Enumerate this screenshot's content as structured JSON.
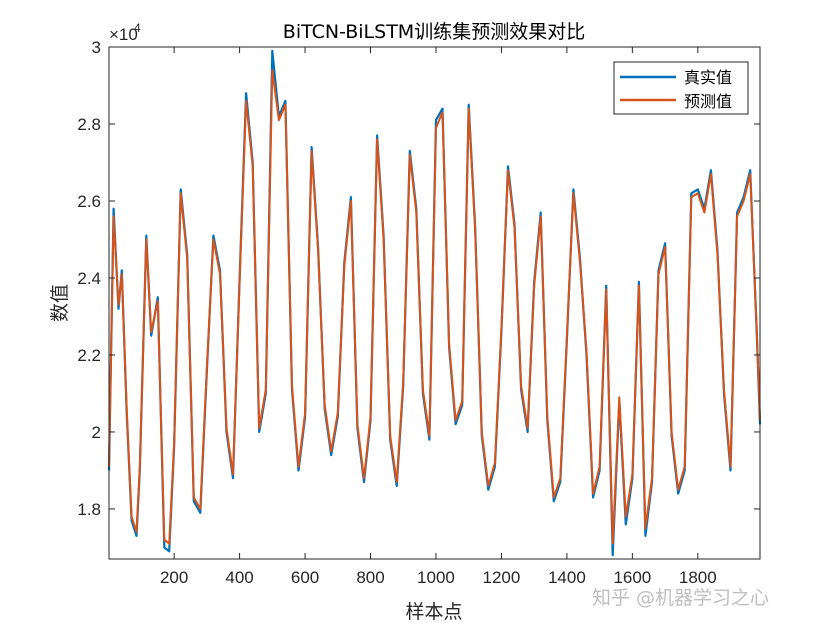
{
  "chart_data": {
    "type": "line",
    "title": "BiTCN-BiLSTM训练集预测效果对比",
    "xlabel": "样本点",
    "ylabel": "数值",
    "xlim": [
      1,
      1990
    ],
    "ylim": [
      16700,
      30000
    ],
    "y_exponent_label": "×10",
    "y_exponent_power": "4",
    "x_ticks": [
      200,
      400,
      600,
      800,
      1000,
      1200,
      1400,
      1600,
      1800
    ],
    "x_tick_labels": [
      "200",
      "400",
      "600",
      "800",
      "1000",
      "1200",
      "1400",
      "1600",
      "1800"
    ],
    "y_ticks": [
      18000,
      20000,
      22000,
      24000,
      26000,
      28000,
      30000
    ],
    "y_tick_labels": [
      "1.8",
      "2",
      "2.2",
      "2.4",
      "2.6",
      "2.8",
      "3"
    ],
    "grid": false,
    "legend_position": "top-right",
    "series": [
      {
        "name": "真实值",
        "color": "#0072BD"
      },
      {
        "name": "预测值",
        "color": "#D95319"
      }
    ],
    "x": [
      1,
      15,
      30,
      40,
      55,
      70,
      85,
      95,
      115,
      130,
      150,
      170,
      185,
      200,
      220,
      240,
      260,
      280,
      300,
      320,
      340,
      360,
      380,
      400,
      420,
      440,
      460,
      480,
      500,
      520,
      540,
      560,
      580,
      600,
      620,
      640,
      660,
      680,
      700,
      720,
      740,
      760,
      780,
      800,
      820,
      840,
      860,
      880,
      900,
      920,
      940,
      960,
      980,
      1000,
      1020,
      1040,
      1060,
      1080,
      1100,
      1120,
      1140,
      1160,
      1180,
      1200,
      1220,
      1240,
      1260,
      1280,
      1300,
      1320,
      1340,
      1360,
      1380,
      1400,
      1420,
      1440,
      1460,
      1480,
      1500,
      1520,
      1540,
      1560,
      1580,
      1600,
      1620,
      1640,
      1660,
      1680,
      1700,
      1720,
      1740,
      1760,
      1780,
      1800,
      1820,
      1840,
      1860,
      1880,
      1900,
      1920,
      1940,
      1960,
      1980,
      1990
    ],
    "true_values": [
      19000,
      25800,
      23200,
      24200,
      20500,
      17700,
      17300,
      19000,
      25100,
      22500,
      23500,
      17000,
      16900,
      19600,
      26300,
      24600,
      18200,
      17900,
      21600,
      25100,
      24200,
      20000,
      18800,
      24000,
      28800,
      27000,
      20000,
      21000,
      29900,
      28200,
      28600,
      21100,
      19000,
      20400,
      27400,
      24800,
      20600,
      19400,
      20400,
      24400,
      26100,
      20100,
      18700,
      20300,
      27700,
      25100,
      19800,
      18600,
      21200,
      27300,
      25800,
      21000,
      19800,
      28100,
      28400,
      22200,
      20200,
      20700,
      28500,
      25300,
      19900,
      18500,
      19100,
      22600,
      26900,
      25400,
      21100,
      20000,
      23900,
      25700,
      20300,
      18200,
      18700,
      22400,
      26300,
      24500,
      22000,
      18300,
      19000,
      23800,
      16800,
      20800,
      17600,
      18800,
      23900,
      17300,
      18700,
      24200,
      24900,
      19900,
      18400,
      19000,
      26200,
      26300,
      25800,
      26800,
      24700,
      21000,
      19000,
      25700,
      26100,
      26800,
      22600,
      20200
    ],
    "pred_values": [
      19100,
      25600,
      23300,
      24100,
      20600,
      17800,
      17400,
      19100,
      25000,
      22600,
      23400,
      17200,
      17100,
      19700,
      26200,
      24500,
      18300,
      18000,
      21700,
      25000,
      24100,
      20100,
      18900,
      23900,
      28600,
      26900,
      20100,
      21100,
      29400,
      28100,
      28500,
      21200,
      19100,
      20500,
      27300,
      24700,
      20700,
      19500,
      20500,
      24300,
      26000,
      20200,
      18800,
      20400,
      27600,
      25000,
      19900,
      18700,
      21300,
      27200,
      25700,
      21100,
      19900,
      27900,
      28300,
      22300,
      20300,
      20800,
      28400,
      25200,
      20000,
      18600,
      19200,
      22700,
      26800,
      25300,
      21200,
      20100,
      23800,
      25600,
      20400,
      18300,
      18800,
      22500,
      26200,
      24400,
      22100,
      18400,
      19100,
      23700,
      17100,
      20900,
      17800,
      18900,
      23800,
      17500,
      18800,
      24100,
      24800,
      20000,
      18500,
      19100,
      26100,
      26200,
      25700,
      26700,
      24600,
      21100,
      19100,
      25600,
      26000,
      26700,
      22700,
      20300
    ]
  },
  "watermark": "知乎 @机器学习之心"
}
